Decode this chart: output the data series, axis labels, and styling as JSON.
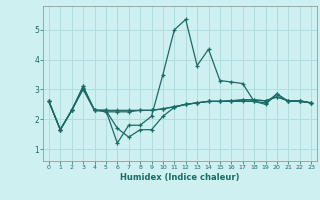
{
  "xlabel": "Humidex (Indice chaleur)",
  "bg_color": "#cef0f0",
  "grid_color": "#b0dede",
  "line_color": "#1a6b66",
  "xlim": [
    -0.5,
    23.5
  ],
  "ylim": [
    0.6,
    5.8
  ],
  "yticks": [
    1,
    2,
    3,
    4,
    5
  ],
  "xticks": [
    0,
    1,
    2,
    3,
    4,
    5,
    6,
    7,
    8,
    9,
    10,
    11,
    12,
    13,
    14,
    15,
    16,
    17,
    18,
    19,
    20,
    21,
    22,
    23
  ],
  "lines": [
    {
      "x": [
        0,
        1,
        2,
        3,
        4,
        5,
        6,
        7,
        8,
        9,
        10,
        11,
        12,
        13,
        14,
        15,
        16,
        17,
        18,
        19,
        20,
        21,
        22,
        23
      ],
      "y": [
        2.6,
        1.65,
        2.3,
        3.1,
        2.3,
        2.3,
        1.2,
        1.8,
        1.8,
        2.1,
        3.5,
        5.0,
        5.35,
        3.8,
        4.35,
        3.3,
        3.25,
        3.2,
        2.6,
        2.5,
        2.85,
        2.6,
        2.6,
        2.55
      ]
    },
    {
      "x": [
        0,
        1,
        2,
        3,
        4,
        5,
        6,
        7,
        8,
        9,
        10,
        11,
        12,
        13,
        14,
        15,
        16,
        17,
        18,
        19,
        20,
        21,
        22,
        23
      ],
      "y": [
        2.6,
        1.65,
        2.3,
        3.1,
        2.3,
        2.3,
        1.7,
        1.4,
        1.65,
        1.65,
        2.1,
        2.4,
        2.5,
        2.55,
        2.6,
        2.6,
        2.6,
        2.6,
        2.6,
        2.55,
        2.85,
        2.6,
        2.6,
        2.55
      ]
    },
    {
      "x": [
        0,
        1,
        2,
        3,
        4,
        5,
        6,
        7,
        8,
        9,
        10,
        11,
        12,
        13,
        14,
        15,
        16,
        17,
        18,
        19,
        20,
        21,
        22,
        23
      ],
      "y": [
        2.6,
        1.65,
        2.3,
        3.05,
        2.3,
        2.3,
        2.3,
        2.3,
        2.3,
        2.3,
        2.35,
        2.42,
        2.5,
        2.55,
        2.6,
        2.6,
        2.62,
        2.65,
        2.65,
        2.62,
        2.75,
        2.62,
        2.62,
        2.55
      ]
    },
    {
      "x": [
        0,
        1,
        2,
        3,
        4,
        5,
        6,
        7,
        8,
        9,
        10,
        11,
        12,
        13,
        14,
        15,
        16,
        17,
        18,
        19,
        20,
        21,
        22,
        23
      ],
      "y": [
        2.6,
        1.65,
        2.3,
        3.0,
        2.3,
        2.25,
        2.25,
        2.25,
        2.3,
        2.3,
        2.35,
        2.42,
        2.5,
        2.55,
        2.6,
        2.6,
        2.62,
        2.65,
        2.65,
        2.62,
        2.75,
        2.62,
        2.62,
        2.55
      ]
    }
  ]
}
